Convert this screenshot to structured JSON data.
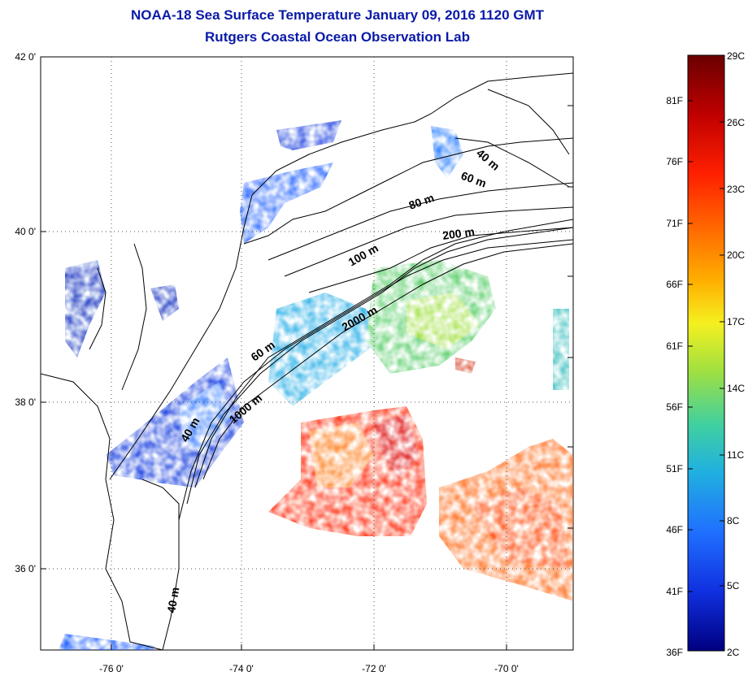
{
  "title": {
    "line1": "NOAA-18 Sea Surface Temperature January 09, 2016 1120 GMT",
    "line2": "Rutgers Coastal Ocean Observation Lab"
  },
  "map": {
    "lat_labels": [
      "42 0'",
      "40 0'",
      "38 0'",
      "36 0'"
    ],
    "lon_labels": [
      "-76 0'",
      "-74 0'",
      "-72 0'",
      "-70 0'"
    ],
    "isobath_labels": [
      "40 m",
      "60 m",
      "80 m",
      "200 m",
      "100 m",
      "2000 m",
      "60 m",
      "1000 m",
      "40 m",
      "40 m"
    ]
  },
  "colorbar": {
    "fahrenheit": [
      "81F",
      "76F",
      "71F",
      "66F",
      "61F",
      "56F",
      "51F",
      "46F",
      "41F",
      "36F"
    ],
    "celsius": [
      "29C",
      "26C",
      "23C",
      "20C",
      "17C",
      "14C",
      "11C",
      "8C",
      "5C",
      "2C"
    ],
    "colors": [
      "#7a0000",
      "#c00000",
      "#ff2000",
      "#ff7000",
      "#ffb000",
      "#f0f020",
      "#a0e040",
      "#40d0a0",
      "#20b0e0",
      "#2070ff",
      "#1030e0",
      "#000090"
    ]
  }
}
